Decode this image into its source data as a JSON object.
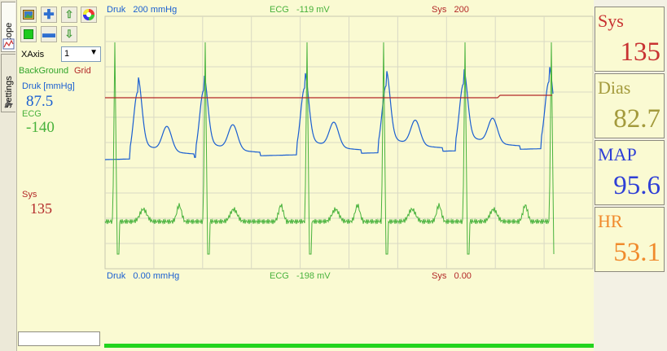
{
  "tabs": [
    {
      "label": "Scope"
    },
    {
      "label": "Settings"
    }
  ],
  "toolbar": {
    "xaxis_label": "XAxis",
    "xaxis_value": "1",
    "background_label": "BackGround",
    "grid_label": "Grid"
  },
  "left_channels": [
    {
      "label": "Druk [mmHg]",
      "value": "87.5",
      "color": "#1a5fd1"
    },
    {
      "label": "ECG",
      "value": "-140",
      "color": "#48b23c"
    }
  ],
  "left_sys": {
    "label": "Sys",
    "value": "135",
    "color": "#b32828"
  },
  "plot": {
    "top_labels": [
      {
        "name": "Druk",
        "value": "200 mmHg",
        "color": "#1a5fd1"
      },
      {
        "name": "ECG",
        "value": "-119 mV",
        "color": "#48b23c"
      },
      {
        "name": "Sys",
        "value": "200",
        "color": "#b32828"
      }
    ],
    "bottom_labels": [
      {
        "name": "Druk",
        "value": "0.00 mmHg",
        "color": "#1a5fd1"
      },
      {
        "name": "ECG",
        "value": "-198 mV",
        "color": "#48b23c"
      },
      {
        "name": "Sys",
        "value": "0.00",
        "color": "#b32828"
      }
    ]
  },
  "readouts": [
    {
      "name": "Sys",
      "value": "135",
      "color": "#c83232"
    },
    {
      "name": "Dias",
      "value": "82.7",
      "color": "#a39a3c"
    },
    {
      "name": "MAP",
      "value": "95.6",
      "color": "#2f3fd6"
    },
    {
      "name": "HR",
      "value": "53.1",
      "color": "#f08a2c"
    }
  ],
  "colors": {
    "pressure": "#1a5fd1",
    "ecg": "#48b23c",
    "sys": "#b32828",
    "grid": "#d9d9c4",
    "status_bar": "#22d41e"
  },
  "icons": [
    "image-icon",
    "plus-icon",
    "up-arrow-icon",
    "color-wheel-icon",
    "green-square-icon",
    "minus-icon",
    "down-arrow-icon",
    "scope-icon",
    "wrench-icon"
  ]
}
